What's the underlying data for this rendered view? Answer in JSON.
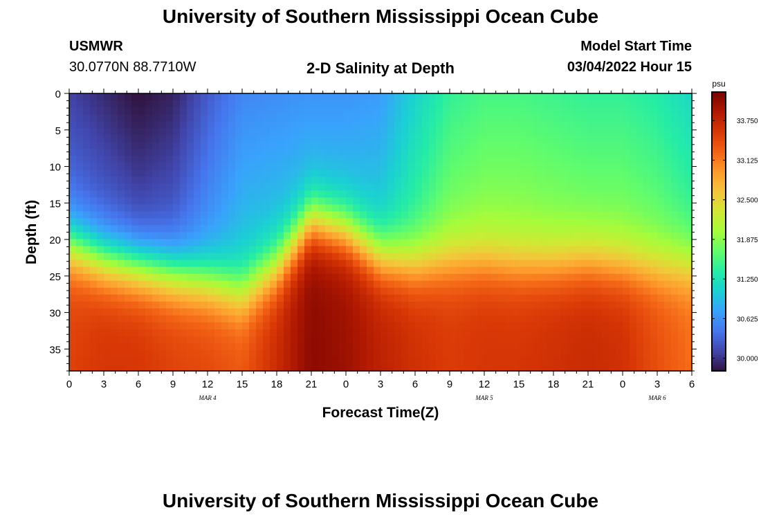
{
  "header": {
    "title": "University of Southern Mississippi Ocean Cube",
    "station": "USMWR",
    "coords": "30.0770N  88.7710W",
    "plot_title": "2-D Salinity at Depth",
    "start_label": "Model Start Time",
    "start_value": "03/04/2022 Hour 15"
  },
  "footer": {
    "title": "University of Southern Mississippi Ocean Cube"
  },
  "colors": {
    "palette": [
      "#30123b",
      "#4145ab",
      "#4675ed",
      "#39a2fc",
      "#1bcfd4",
      "#24eca6",
      "#61fc6c",
      "#a4fc3b",
      "#d1e834",
      "#f3c63a",
      "#fe9b2d",
      "#f36315",
      "#d93806",
      "#b11901",
      "#7a0402"
    ]
  },
  "chart_data": {
    "type": "heatmap",
    "title": "2-D Salinity at Depth",
    "xlabel": "Forecast Time(Z)",
    "ylabel": "Depth (ft)",
    "x_tick_labels": [
      "0",
      "3",
      "6",
      "9",
      "12",
      "15",
      "18",
      "21",
      "0",
      "3",
      "6",
      "9",
      "12",
      "15",
      "18",
      "21",
      "0",
      "3",
      "6"
    ],
    "x_hours_since_mar4_00": [
      0,
      3,
      6,
      9,
      12,
      15,
      18,
      21,
      24,
      27,
      30,
      33,
      36,
      39,
      42,
      45,
      48,
      51,
      54
    ],
    "xlim_hours": [
      0,
      54
    ],
    "date_labels": [
      {
        "text": "MAR 4",
        "hour": 12
      },
      {
        "text": "MAR 5",
        "hour": 36
      },
      {
        "text": "MAR 6",
        "hour": 51
      }
    ],
    "y_ticks": [
      0,
      5,
      10,
      15,
      20,
      25,
      30,
      35
    ],
    "ylim_ft": [
      0,
      38
    ],
    "y_inverted": true,
    "colorbar": {
      "unit": "psu",
      "min": 29.8,
      "max": 34.2,
      "tick_values": [
        30.0,
        30.625,
        31.25,
        31.875,
        32.5,
        33.125,
        33.75
      ],
      "tick_labels": [
        "30.000",
        "30.625",
        "31.250",
        "31.875",
        "32.500",
        "33.125",
        "33.750"
      ]
    },
    "halocline_depth_ft_by_hour": {
      "hours": [
        0,
        3,
        6,
        9,
        12,
        15,
        18,
        21,
        24,
        27,
        30,
        33,
        36,
        39,
        42,
        45,
        48,
        51,
        54
      ],
      "depth": [
        21,
        23,
        24,
        25,
        26,
        27.5,
        24,
        17.5,
        19,
        22.5,
        23.5,
        23,
        23,
        23.5,
        23.5,
        23,
        23.5,
        24,
        24
      ]
    },
    "surface_salinity_by_hour": {
      "hours": [
        0,
        3,
        6,
        9,
        12,
        15,
        18,
        21,
        24,
        27,
        30,
        33,
        36,
        39,
        42,
        45,
        48,
        51,
        54
      ],
      "psu": [
        30.1,
        29.95,
        29.8,
        29.9,
        30.25,
        30.55,
        30.6,
        30.65,
        30.65,
        30.7,
        31.1,
        31.45,
        31.55,
        31.55,
        31.5,
        31.45,
        31.45,
        31.35,
        31.15
      ]
    },
    "bottom_salinity_by_hour": {
      "hours": [
        0,
        3,
        6,
        9,
        12,
        15,
        18,
        21,
        24,
        27,
        30,
        33,
        36,
        39,
        42,
        45,
        48,
        51,
        54
      ],
      "psu": [
        33.5,
        33.6,
        33.6,
        33.5,
        33.45,
        33.35,
        33.7,
        34.1,
        34.0,
        33.8,
        33.65,
        33.55,
        33.6,
        33.6,
        33.65,
        33.7,
        33.65,
        33.4,
        33.2
      ]
    }
  }
}
